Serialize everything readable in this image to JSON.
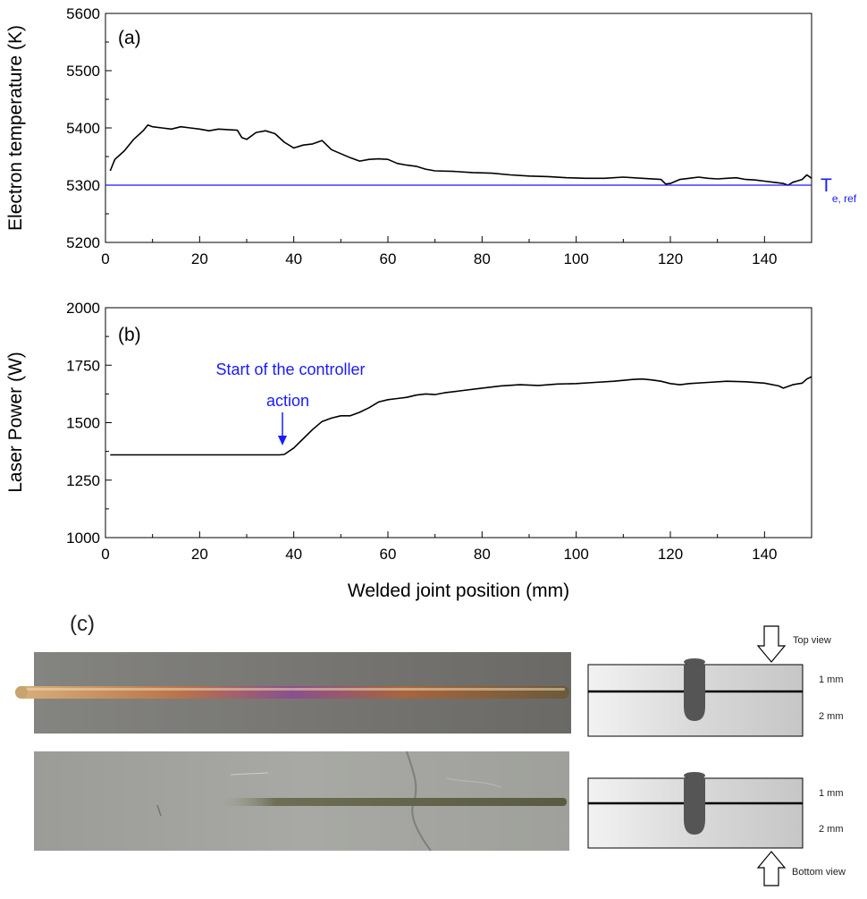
{
  "chart_data": [
    {
      "type": "line",
      "panel_label": "(a)",
      "xlabel": "",
      "ylabel": "Electron temperature (K)",
      "xlim": [
        0,
        150
      ],
      "ylim": [
        5200,
        5600
      ],
      "xticks": [
        0,
        20,
        40,
        60,
        80,
        100,
        120,
        140
      ],
      "yticks": [
        5200,
        5300,
        5400,
        5500,
        5600
      ],
      "xtick_labels": [
        "0",
        "20",
        "40",
        "60",
        "80",
        "100",
        "120",
        "140"
      ],
      "ytick_labels": [
        "5200",
        "5300",
        "5400",
        "5500",
        "5600"
      ],
      "grid": false,
      "series": [
        {
          "color": "#000000",
          "x": [
            1,
            2,
            4,
            6,
            8,
            9,
            10,
            12,
            14,
            16,
            18,
            20,
            22,
            24,
            26,
            28,
            29,
            30,
            32,
            34,
            36,
            38,
            40,
            42,
            44,
            46,
            48,
            50,
            52,
            54,
            56,
            58,
            60,
            62,
            64,
            66,
            68,
            70,
            74,
            78,
            82,
            86,
            90,
            94,
            98,
            102,
            106,
            110,
            114,
            118,
            119,
            120,
            122,
            124,
            126,
            128,
            130,
            132,
            134,
            136,
            138,
            140,
            142,
            144,
            145,
            146,
            148,
            149,
            150
          ],
          "y": [
            5325,
            5345,
            5360,
            5380,
            5395,
            5405,
            5402,
            5400,
            5398,
            5402,
            5400,
            5398,
            5395,
            5398,
            5397,
            5396,
            5383,
            5380,
            5392,
            5395,
            5390,
            5375,
            5365,
            5370,
            5372,
            5378,
            5362,
            5355,
            5348,
            5342,
            5345,
            5346,
            5345,
            5338,
            5335,
            5333,
            5328,
            5325,
            5324,
            5322,
            5321,
            5318,
            5316,
            5315,
            5313,
            5312,
            5312,
            5314,
            5312,
            5310,
            5302,
            5303,
            5310,
            5312,
            5314,
            5312,
            5311,
            5312,
            5313,
            5310,
            5309,
            5307,
            5305,
            5303,
            5300,
            5305,
            5310,
            5318,
            5312
          ]
        },
        {
          "name": "T",
          "name_subscript": "e, ref",
          "color": "#1a1aff",
          "x": [
            0,
            150
          ],
          "y": [
            5300,
            5300
          ]
        }
      ]
    },
    {
      "type": "line",
      "panel_label": "(b)",
      "xlabel": "Welded joint position (mm)",
      "ylabel": "Laser Power (W)",
      "xlim": [
        0,
        150
      ],
      "ylim": [
        1000,
        2000
      ],
      "xticks": [
        0,
        20,
        40,
        60,
        80,
        100,
        120,
        140
      ],
      "yticks": [
        1000,
        1250,
        1500,
        1750,
        2000
      ],
      "xtick_labels": [
        "0",
        "20",
        "40",
        "60",
        "80",
        "100",
        "120",
        "140"
      ],
      "ytick_labels": [
        "1000",
        "1250",
        "1500",
        "1750",
        "2000"
      ],
      "grid": false,
      "annotation": {
        "lines": [
          "Start of the controller",
          "action"
        ],
        "x": 38,
        "y": 1360,
        "color": "#1a1aff"
      },
      "series": [
        {
          "color": "#000000",
          "x": [
            1,
            10,
            20,
            30,
            37,
            38,
            40,
            42,
            44,
            46,
            48,
            50,
            52,
            54,
            56,
            58,
            60,
            62,
            64,
            66,
            68,
            70,
            72,
            76,
            80,
            84,
            88,
            92,
            96,
            100,
            104,
            108,
            112,
            114,
            116,
            118,
            120,
            122,
            124,
            128,
            132,
            136,
            140,
            143,
            144,
            146,
            148,
            149,
            150
          ],
          "y": [
            1360,
            1360,
            1360,
            1360,
            1360,
            1362,
            1390,
            1430,
            1470,
            1505,
            1520,
            1530,
            1530,
            1545,
            1565,
            1590,
            1600,
            1605,
            1610,
            1620,
            1625,
            1622,
            1630,
            1640,
            1650,
            1660,
            1665,
            1662,
            1668,
            1670,
            1675,
            1680,
            1688,
            1690,
            1686,
            1680,
            1670,
            1665,
            1670,
            1675,
            1680,
            1678,
            1672,
            1660,
            1650,
            1665,
            1672,
            1690,
            1700
          ]
        }
      ]
    }
  ],
  "panel_c": {
    "label": "(c)",
    "top_view_label": "Top view",
    "bottom_view_label": "Bottom view",
    "layer_top_label": "1 mm",
    "layer_bottom_label": "2 mm"
  }
}
